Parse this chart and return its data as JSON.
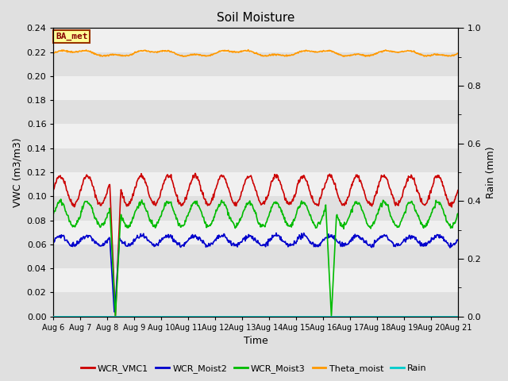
{
  "title": "Soil Moisture",
  "xlabel": "Time",
  "ylabel_left": "VWC (m3/m3)",
  "ylabel_right": "Rain (mm)",
  "ylim_left": [
    0,
    0.24
  ],
  "ylim_right": [
    0.0,
    1.0
  ],
  "yticks_left": [
    0.0,
    0.02,
    0.04,
    0.06,
    0.08,
    0.1,
    0.12,
    0.14,
    0.16,
    0.18,
    0.2,
    0.22,
    0.24
  ],
  "yticks_right_labeled": [
    0.0,
    0.2,
    0.4,
    0.6,
    0.8,
    1.0
  ],
  "yticks_right_minor": [
    0.1,
    0.3,
    0.5,
    0.7,
    0.9
  ],
  "xtick_labels": [
    "Aug 6",
    "Aug 7",
    "Aug 8",
    "Aug 9",
    "Aug 10",
    "Aug 11",
    "Aug 12",
    "Aug 13",
    "Aug 14",
    "Aug 15",
    "Aug 16",
    "Aug 17",
    "Aug 18",
    "Aug 19",
    "Aug 20",
    "Aug 21"
  ],
  "station_label": "BA_met",
  "bg_color": "#e0e0e0",
  "band_color_light": "#f0f0f0",
  "band_color_dark": "#e0e0e0",
  "series": {
    "WCR_VMC1": {
      "color": "#cc0000",
      "linewidth": 1.2
    },
    "WCR_Moist2": {
      "color": "#0000cc",
      "linewidth": 1.2
    },
    "WCR_Moist3": {
      "color": "#00bb00",
      "linewidth": 1.2
    },
    "Theta_moist": {
      "color": "#ff9900",
      "linewidth": 1.2
    },
    "Rain": {
      "color": "#00cccc",
      "linewidth": 1.2
    }
  },
  "n_days": 15,
  "points_per_day": 48
}
